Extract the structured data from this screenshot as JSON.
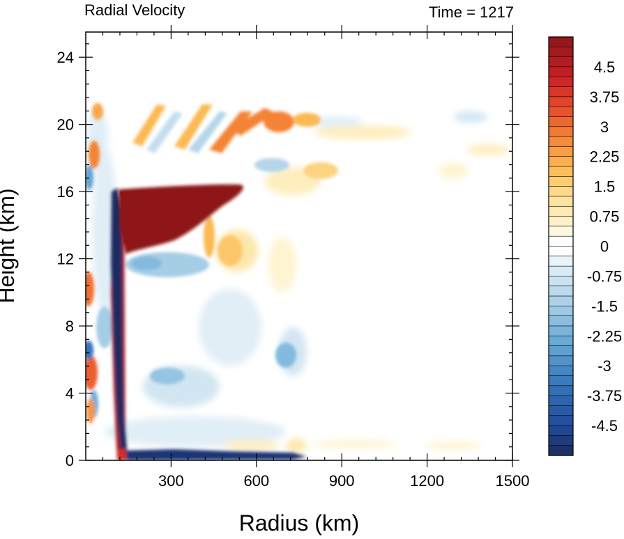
{
  "chart_data": {
    "type": "heatmap",
    "title": "Radial Velocity",
    "subtitle": "Time = 1217",
    "xlabel": "Radius (km)",
    "ylabel": "Height (km)",
    "xlim": [
      0,
      1500
    ],
    "ylim": [
      0,
      25.5
    ],
    "x_ticks": [
      300,
      600,
      900,
      1200,
      1500
    ],
    "y_ticks": [
      0,
      4,
      8,
      12,
      16,
      20,
      24
    ],
    "x_tick_labels": [
      "300",
      "600",
      "900",
      "1200",
      "1500"
    ],
    "y_tick_labels": [
      "0",
      "4",
      "8",
      "12",
      "16",
      "20",
      "24"
    ],
    "colorbar": {
      "min": -5.25,
      "max": 5.25,
      "step": 0.25,
      "labels": [
        "4.5",
        "3.75",
        "3",
        "2.25",
        "1.5",
        "0.75",
        "0",
        "-0.75",
        "-1.5",
        "-2.25",
        "-3",
        "-3.75",
        "-4.5"
      ],
      "label_values": [
        4.5,
        3.75,
        3,
        2.25,
        1.5,
        0.75,
        0,
        -0.75,
        -1.5,
        -2.25,
        -3,
        -3.75,
        -4.5
      ]
    },
    "features": [
      {
        "name": "upper-level outflow jet",
        "value": 5.25,
        "x": [
          120,
          550
        ],
        "y": [
          12.5,
          16.1
        ]
      },
      {
        "name": "inner-core inflow column",
        "value": -5.25,
        "x": [
          100,
          130
        ],
        "y": [
          0.5,
          16
        ]
      },
      {
        "name": "boundary-layer inflow",
        "value": -5,
        "x": [
          140,
          450
        ],
        "y": [
          0,
          0.6
        ]
      },
      {
        "name": "eyewall outflow column",
        "value": 4.5,
        "x": [
          125,
          160
        ],
        "y": [
          1,
          12
        ]
      },
      {
        "name": "upper outflow lobe",
        "value": 2.5,
        "x": [
          620,
          760
        ],
        "y": [
          19.5,
          20.7
        ]
      },
      {
        "name": "mid-level inflow band",
        "value": -1.5,
        "x": [
          180,
          350
        ],
        "y": [
          10,
          12
        ]
      }
    ]
  }
}
